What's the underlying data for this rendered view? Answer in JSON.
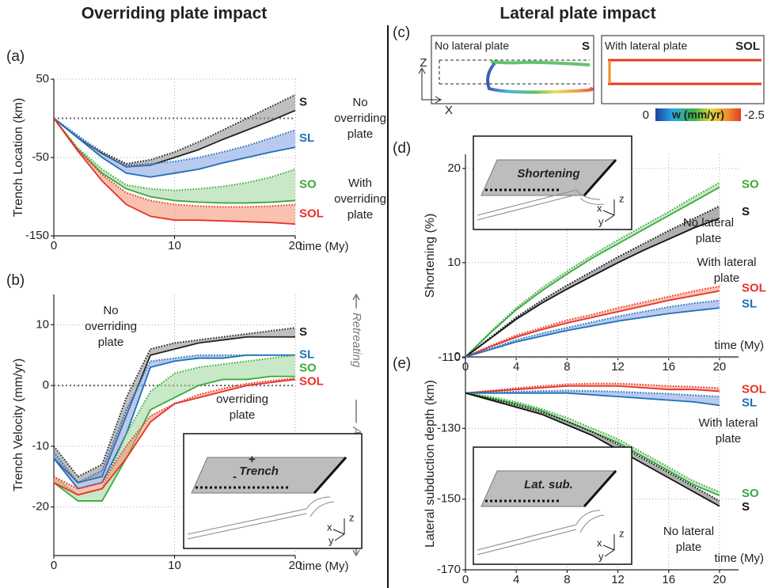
{
  "headings": [
    "Overriding plate impact",
    "Lateral plate impact"
  ],
  "panel_c": {
    "panel": "(c)",
    "left_title": "No lateral plate",
    "left_tag": "S",
    "right_title": "With lateral plate",
    "right_tag": "SOL",
    "axis_z": "Z",
    "axis_x": "X",
    "colorbar_label": "w (mm/yr)",
    "colorbar_range": [
      0,
      -2.5
    ]
  },
  "insets": {
    "b": {
      "label": "Trench",
      "plus": "+",
      "minus": "-"
    },
    "d": {
      "label": "Shortening"
    },
    "e": {
      "label": "Lat. sub."
    },
    "axes": [
      "x",
      "y",
      "z"
    ]
  },
  "chart_data": [
    {
      "type": "line",
      "panel": "(a)",
      "ylabel": "Trench Location (km)",
      "xlabel": "time (My)",
      "xlim": [
        0,
        20
      ],
      "ylim": [
        -150,
        50
      ],
      "xticks": [
        0,
        10,
        20
      ],
      "yticks": [
        50,
        -50,
        -150
      ],
      "grid": true,
      "x": [
        0,
        2,
        4,
        6,
        8,
        10,
        12,
        14,
        16,
        18,
        20
      ],
      "series": [
        {
          "name": "S",
          "color": "#222222",
          "fill": "#8a8a8a",
          "values": [
            0,
            -25,
            -45,
            -62,
            -60,
            -50,
            -40,
            -27,
            -15,
            -3,
            10
          ],
          "upper_values": [
            0,
            -23,
            -43,
            -58,
            -53,
            -43,
            -30,
            -15,
            0,
            15,
            30
          ]
        },
        {
          "name": "SL",
          "color": "#1f6fb8",
          "fill": "#7d9ee0",
          "values": [
            0,
            -25,
            -50,
            -70,
            -75,
            -70,
            -65,
            -57,
            -50,
            -43,
            -37
          ],
          "upper_values": [
            0,
            -22,
            -45,
            -60,
            -58,
            -55,
            -50,
            -43,
            -35,
            -25,
            -15
          ]
        },
        {
          "name": "SO",
          "color": "#3aaa3a",
          "fill": "#9ad69a",
          "values": [
            0,
            -40,
            -70,
            -90,
            -100,
            -105,
            -107,
            -108,
            -108,
            -107,
            -105
          ],
          "upper_values": [
            0,
            -38,
            -65,
            -85,
            -90,
            -92,
            -90,
            -87,
            -82,
            -75,
            -65
          ]
        },
        {
          "name": "SOL",
          "color": "#e8312a",
          "fill": "#f3906e",
          "values": [
            0,
            -42,
            -80,
            -110,
            -125,
            -130,
            -130,
            -131,
            -132,
            -133,
            -135
          ],
          "upper_values": [
            0,
            -40,
            -72,
            -95,
            -105,
            -110,
            -112,
            -113,
            -113,
            -112,
            -110
          ]
        }
      ],
      "annotations": [
        [
          "No",
          "overriding",
          "plate"
        ],
        [
          "With",
          "overriding",
          "plate"
        ]
      ]
    },
    {
      "type": "line",
      "panel": "(b)",
      "ylabel": "Trench Velocity (mm/yr)",
      "xlabel": "time (My)",
      "xlim": [
        0,
        20
      ],
      "ylim": [
        -28,
        15
      ],
      "xticks": [
        0,
        10,
        20
      ],
      "yticks": [
        10,
        0,
        -10,
        -20
      ],
      "grid": true,
      "x": [
        0,
        2,
        4,
        6,
        8,
        10,
        12,
        14,
        16,
        18,
        20
      ],
      "series": [
        {
          "name": "S",
          "color": "#222222",
          "fill": "#8a8a8a",
          "values": [
            -12,
            -16,
            -15,
            -5,
            5,
            6,
            7,
            7.5,
            8,
            8,
            8
          ],
          "upper_values": [
            -10,
            -15,
            -13,
            -2,
            6,
            7,
            7.5,
            8,
            8.5,
            9,
            9.5
          ]
        },
        {
          "name": "SL",
          "color": "#1f6fb8",
          "fill": "#7d9ee0",
          "values": [
            -12,
            -17,
            -16,
            -8,
            3,
            4,
            4.5,
            4.5,
            5,
            5,
            5
          ],
          "upper_values": [
            -11,
            -16,
            -14,
            -4,
            4,
            4.5,
            5,
            5,
            5,
            5,
            5
          ]
        },
        {
          "name": "SO",
          "color": "#3aaa3a",
          "fill": "#9ad69a",
          "values": [
            -16,
            -19,
            -19,
            -12,
            -4,
            -2,
            0,
            1,
            1,
            1.5,
            1.5
          ],
          "upper_values": [
            -15,
            -18,
            -17,
            -8,
            -1,
            2,
            3,
            3.5,
            4,
            4.5,
            5
          ]
        },
        {
          "name": "SOL",
          "color": "#e8312a",
          "fill": "#f3906e",
          "values": [
            -16,
            -18,
            -17,
            -12,
            -6,
            -3,
            -2,
            -1,
            0,
            0.5,
            1
          ],
          "upper_values": [
            -15,
            -17,
            -16,
            -10,
            -5,
            -3,
            -1.5,
            -0.5,
            0.3,
            0.8,
            1.2
          ]
        }
      ],
      "annotations": [
        [
          "No",
          "overriding",
          "plate"
        ],
        [
          "overriding",
          "plate"
        ]
      ],
      "side_labels": [
        "Retreating",
        "Advancing"
      ]
    },
    {
      "type": "line",
      "panel": "(d)",
      "ylabel": "Shortening (%)",
      "xlabel": "time (My)",
      "xlim": [
        0,
        21.5
      ],
      "ylim": [
        0,
        21.5
      ],
      "xticks": [
        0,
        4,
        8,
        12,
        16,
        20
      ],
      "yticks": [
        0,
        10,
        20
      ],
      "grid": true,
      "x": [
        0,
        2,
        4,
        6,
        8,
        10,
        12,
        14,
        16,
        18,
        20
      ],
      "series": [
        {
          "name": "SO",
          "color": "#3aaa3a",
          "fill": "#9ad69a",
          "values": [
            0,
            2.6,
            5,
            7,
            8.8,
            10.5,
            12,
            13.5,
            15,
            16.5,
            18
          ],
          "upper_values": [
            0,
            2.7,
            5.2,
            7.3,
            9.1,
            10.8,
            12.4,
            13.9,
            15.4,
            17,
            18.5
          ]
        },
        {
          "name": "S",
          "color": "#111111",
          "fill": "#6e6e6e",
          "values": [
            0,
            2,
            4,
            5.7,
            7.2,
            8.6,
            10,
            11.3,
            12.5,
            13.7,
            14.7
          ],
          "upper_values": [
            0,
            2.1,
            4.2,
            6,
            7.6,
            9.1,
            10.6,
            12,
            13.4,
            14.7,
            16
          ]
        },
        {
          "name": "SOL",
          "color": "#e8312a",
          "fill": "#f3906e",
          "values": [
            0,
            1.1,
            2.1,
            2.9,
            3.6,
            4.2,
            4.8,
            5.4,
            6,
            6.5,
            7
          ],
          "upper_values": [
            0,
            1.2,
            2.3,
            3.1,
            3.9,
            4.5,
            5.2,
            5.8,
            6.4,
            7,
            7.5
          ]
        },
        {
          "name": "SL",
          "color": "#1f6fb8",
          "fill": "#7d9ee0",
          "values": [
            0,
            0.8,
            1.6,
            2.2,
            2.8,
            3.3,
            3.8,
            4.2,
            4.6,
            4.9,
            5.2
          ],
          "upper_values": [
            0,
            0.9,
            1.8,
            2.5,
            3.1,
            3.7,
            4.3,
            4.8,
            5.3,
            5.7,
            6
          ]
        }
      ],
      "annotations": [
        [
          "No lateral",
          "plate"
        ],
        [
          "With lateral",
          "plate"
        ]
      ]
    },
    {
      "type": "line",
      "panel": "(e)",
      "ylabel": "Lateral subduction depth (km)",
      "xlabel": "time (My)",
      "xlim": [
        0,
        21.5
      ],
      "ylim": [
        -170,
        -110
      ],
      "xticks": [
        0,
        4,
        8,
        12,
        16,
        20
      ],
      "yticks": [
        -110,
        -130,
        -150,
        -170
      ],
      "grid": true,
      "x": [
        0,
        2,
        4,
        6,
        8,
        10,
        12,
        14,
        16,
        18,
        20
      ],
      "series": [
        {
          "name": "SOL",
          "color": "#e8312a",
          "fill": "#f3906e",
          "values": [
            -120,
            -119.5,
            -119,
            -118.5,
            -118,
            -118,
            -118,
            -118.5,
            -119,
            -119,
            -119.5
          ],
          "upper_values": [
            -120,
            -119.3,
            -118.6,
            -118,
            -117.5,
            -117.3,
            -117.3,
            -117.6,
            -118,
            -118.2,
            -118.6
          ]
        },
        {
          "name": "SL",
          "color": "#1f6fb8",
          "fill": "#7d9ee0",
          "values": [
            -120,
            -120,
            -120,
            -120,
            -120,
            -120.5,
            -121,
            -121.5,
            -122,
            -122.5,
            -123.5
          ],
          "upper_values": [
            -120,
            -119.8,
            -119.6,
            -119.4,
            -119.3,
            -119.4,
            -119.6,
            -119.9,
            -120.2,
            -120.6,
            -121
          ]
        },
        {
          "name": "SO",
          "color": "#3aaa3a",
          "fill": "#9ad69a",
          "values": [
            -120,
            -121.5,
            -123,
            -125,
            -128,
            -131,
            -134,
            -138,
            -142,
            -146,
            -149
          ],
          "upper_values": [
            -120,
            -121,
            -122.5,
            -124.5,
            -127,
            -130,
            -133,
            -137,
            -141,
            -145,
            -148
          ]
        },
        {
          "name": "S",
          "color": "#111111",
          "fill": "#6e6e6e",
          "values": [
            -120,
            -122,
            -124,
            -126,
            -129,
            -132,
            -136,
            -140,
            -144,
            -148,
            -152
          ],
          "upper_values": [
            -120,
            -121.6,
            -123.4,
            -125.4,
            -128,
            -131,
            -134.5,
            -138.5,
            -142.5,
            -146.5,
            -150.5
          ]
        }
      ],
      "annotations": [
        [
          "With lateral",
          "plate"
        ],
        [
          "No lateral",
          "plate"
        ]
      ]
    }
  ]
}
